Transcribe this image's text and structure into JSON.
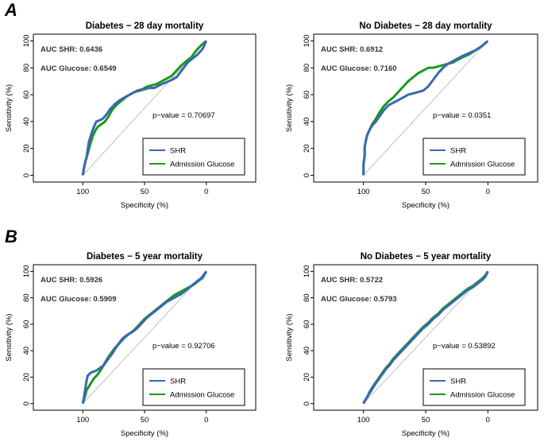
{
  "figure": {
    "panel_letters": [
      "A",
      "B"
    ]
  },
  "colors": {
    "shr": "#3a67b5",
    "glucose": "#1a9a1a",
    "diagonal": "#bfbfbf",
    "frame": "#000000"
  },
  "chart_data": [
    {
      "type": "line",
      "panel": "A",
      "title": "Diabetes − 28 day mortality",
      "xlabel": "Specificity (%)",
      "ylabel": "Sensitivity (%)",
      "xlim": [
        140,
        -40
      ],
      "ylim": [
        -5,
        105
      ],
      "xticks": [
        100,
        50,
        0
      ],
      "yticks": [
        0,
        20,
        40,
        60,
        80,
        100
      ],
      "auc_shr": "AUC SHR: 0.6436",
      "auc_glucose": "AUC Glucose: 0.6549",
      "p_value": "p−value = 0.70697",
      "legend": [
        "SHR",
        "Admission Glucose"
      ],
      "series": [
        {
          "name": "SHR",
          "x": [
            100,
            99,
            97,
            96,
            95,
            93,
            91,
            89,
            86,
            84,
            81,
            78,
            74,
            70,
            66,
            62,
            58,
            54,
            50,
            46,
            42,
            38,
            33,
            28,
            24,
            20,
            15,
            11,
            7,
            3,
            0
          ],
          "y": [
            0,
            6,
            13,
            19,
            25,
            31,
            36,
            40,
            41,
            42,
            45,
            49,
            53,
            56,
            58,
            60,
            62,
            63,
            64,
            65,
            65,
            67,
            69,
            71,
            73,
            78,
            84,
            87,
            90,
            94,
            100
          ]
        },
        {
          "name": "Admission Glucose",
          "x": [
            100,
            99,
            98,
            96,
            94,
            92,
            90,
            88,
            85,
            82,
            79,
            76,
            72,
            68,
            64,
            60,
            56,
            52,
            48,
            44,
            40,
            36,
            32,
            28,
            24,
            20,
            16,
            12,
            8,
            4,
            0
          ],
          "y": [
            0,
            5,
            10,
            16,
            23,
            29,
            33,
            36,
            38,
            40,
            44,
            49,
            53,
            56,
            59,
            61,
            63,
            64,
            66,
            67,
            68,
            70,
            72,
            74,
            78,
            82,
            85,
            88,
            93,
            97,
            100
          ]
        }
      ]
    },
    {
      "type": "line",
      "panel": "A",
      "title": "No Diabetes − 28 day mortality",
      "xlabel": "Specificity (%)",
      "ylabel": "Sensitivity (%)",
      "xlim": [
        140,
        -40
      ],
      "ylim": [
        -5,
        105
      ],
      "xticks": [
        100,
        50,
        0
      ],
      "yticks": [
        0,
        20,
        40,
        60,
        80,
        100
      ],
      "auc_shr": "AUC SHR: 0.6912",
      "auc_glucose": "AUC Glucose: 0.7160",
      "p_value": "p−value = 0.0351",
      "legend": [
        "SHR",
        "Admission Glucose"
      ],
      "series": [
        {
          "name": "SHR",
          "x": [
            100,
            100,
            99,
            99,
            98,
            97,
            95,
            93,
            90,
            87,
            84,
            80,
            76,
            72,
            68,
            64,
            60,
            56,
            52,
            48,
            44,
            40,
            36,
            32,
            28,
            24,
            20,
            15,
            10,
            5,
            0
          ],
          "y": [
            0,
            8,
            15,
            21,
            26,
            30,
            34,
            37,
            40,
            44,
            48,
            52,
            54,
            56,
            58,
            60,
            61,
            62,
            63,
            66,
            71,
            76,
            80,
            83,
            85,
            87,
            89,
            91,
            93,
            96,
            100
          ]
        },
        {
          "name": "Admission Glucose",
          "x": [
            100,
            100,
            99,
            99,
            98,
            97,
            95,
            93,
            90,
            87,
            84,
            80,
            76,
            72,
            68,
            64,
            60,
            56,
            52,
            48,
            44,
            40,
            36,
            32,
            28,
            24,
            20,
            15,
            10,
            5,
            0
          ],
          "y": [
            0,
            8,
            15,
            21,
            26,
            30,
            34,
            38,
            42,
            47,
            51,
            55,
            58,
            62,
            66,
            70,
            73,
            76,
            78,
            80,
            80,
            81,
            82,
            83,
            84,
            86,
            88,
            90,
            93,
            96,
            100
          ]
        }
      ]
    },
    {
      "type": "line",
      "panel": "B",
      "title": "Diabetes − 5 year mortality",
      "xlabel": "Specificity (%)",
      "ylabel": "Sensitivity (%)",
      "xlim": [
        140,
        -40
      ],
      "ylim": [
        -5,
        105
      ],
      "xticks": [
        100,
        50,
        0
      ],
      "yticks": [
        0,
        20,
        40,
        60,
        80,
        100
      ],
      "auc_shr": "AUC SHR: 0.5926",
      "auc_glucose": "AUC Glucose: 0.5909",
      "p_value": "p−value = 0.92706",
      "legend": [
        "SHR",
        "Admission Glucose"
      ],
      "series": [
        {
          "name": "SHR",
          "x": [
            100,
            99,
            98,
            97,
            96,
            94,
            92,
            89,
            86,
            83,
            80,
            76,
            72,
            68,
            64,
            60,
            56,
            52,
            48,
            44,
            40,
            36,
            32,
            28,
            24,
            20,
            16,
            12,
            8,
            4,
            0
          ],
          "y": [
            0,
            5,
            11,
            17,
            21,
            23,
            24,
            25,
            27,
            29,
            33,
            38,
            44,
            49,
            52,
            54,
            57,
            61,
            65,
            68,
            71,
            74,
            77,
            79,
            81,
            83,
            86,
            89,
            92,
            95,
            100
          ]
        },
        {
          "name": "Admission Glucose",
          "x": [
            100,
            99,
            98,
            97,
            95,
            93,
            91,
            88,
            85,
            82,
            78,
            74,
            70,
            66,
            62,
            58,
            54,
            50,
            46,
            42,
            38,
            34,
            30,
            26,
            22,
            18,
            14,
            10,
            6,
            3,
            0
          ],
          "y": [
            0,
            3,
            6,
            10,
            13,
            16,
            19,
            22,
            26,
            31,
            37,
            42,
            46,
            50,
            53,
            56,
            60,
            64,
            67,
            70,
            73,
            76,
            79,
            82,
            84,
            86,
            88,
            90,
            93,
            95,
            100
          ]
        }
      ]
    },
    {
      "type": "line",
      "panel": "B",
      "title": "No Diabetes − 5 year mortality",
      "xlabel": "Specificity (%)",
      "ylabel": "Sensitivity (%)",
      "xlim": [
        140,
        -40
      ],
      "ylim": [
        -5,
        105
      ],
      "xticks": [
        100,
        50,
        0
      ],
      "yticks": [
        0,
        20,
        40,
        60,
        80,
        100
      ],
      "auc_shr": "AUC SHR: 0.5722",
      "auc_glucose": "AUC Glucose: 0.5793",
      "p_value": "p−value = 0.53892",
      "legend": [
        "SHR",
        "Admission Glucose"
      ],
      "series": [
        {
          "name": "SHR",
          "x": [
            100,
            99,
            97,
            95,
            93,
            91,
            88,
            85,
            82,
            79,
            76,
            72,
            68,
            64,
            60,
            56,
            52,
            48,
            44,
            40,
            36,
            32,
            28,
            24,
            20,
            16,
            12,
            8,
            4,
            2,
            0
          ],
          "y": [
            0,
            2,
            5,
            8,
            11,
            14,
            18,
            22,
            26,
            29,
            33,
            37,
            41,
            45,
            49,
            53,
            57,
            60,
            64,
            67,
            71,
            74,
            77,
            80,
            83,
            86,
            88,
            91,
            94,
            96,
            100
          ]
        },
        {
          "name": "Admission Glucose",
          "x": [
            100,
            99,
            97,
            95,
            93,
            91,
            88,
            85,
            82,
            79,
            76,
            72,
            68,
            64,
            60,
            56,
            52,
            48,
            44,
            40,
            36,
            32,
            28,
            24,
            20,
            16,
            12,
            8,
            4,
            2,
            0
          ],
          "y": [
            0,
            2,
            5,
            9,
            12,
            15,
            19,
            23,
            27,
            30,
            34,
            38,
            42,
            46,
            50,
            54,
            58,
            61,
            65,
            68,
            72,
            75,
            78,
            81,
            84,
            87,
            89,
            92,
            95,
            97,
            100
          ]
        }
      ]
    }
  ]
}
